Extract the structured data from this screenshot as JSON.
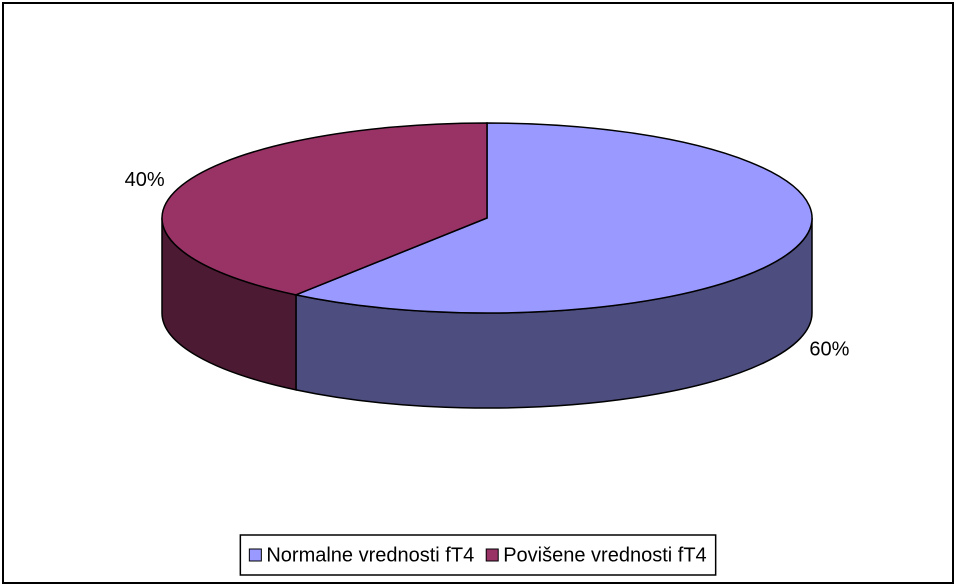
{
  "chart_data": {
    "type": "pie",
    "categories": [
      "Normalne vrednosti fT4",
      "Povišene vrednosti fT4"
    ],
    "values": [
      60,
      40
    ],
    "value_labels": [
      "60%",
      "40%"
    ],
    "colors": [
      "#9999ff",
      "#993366"
    ],
    "legend": "bottom"
  }
}
